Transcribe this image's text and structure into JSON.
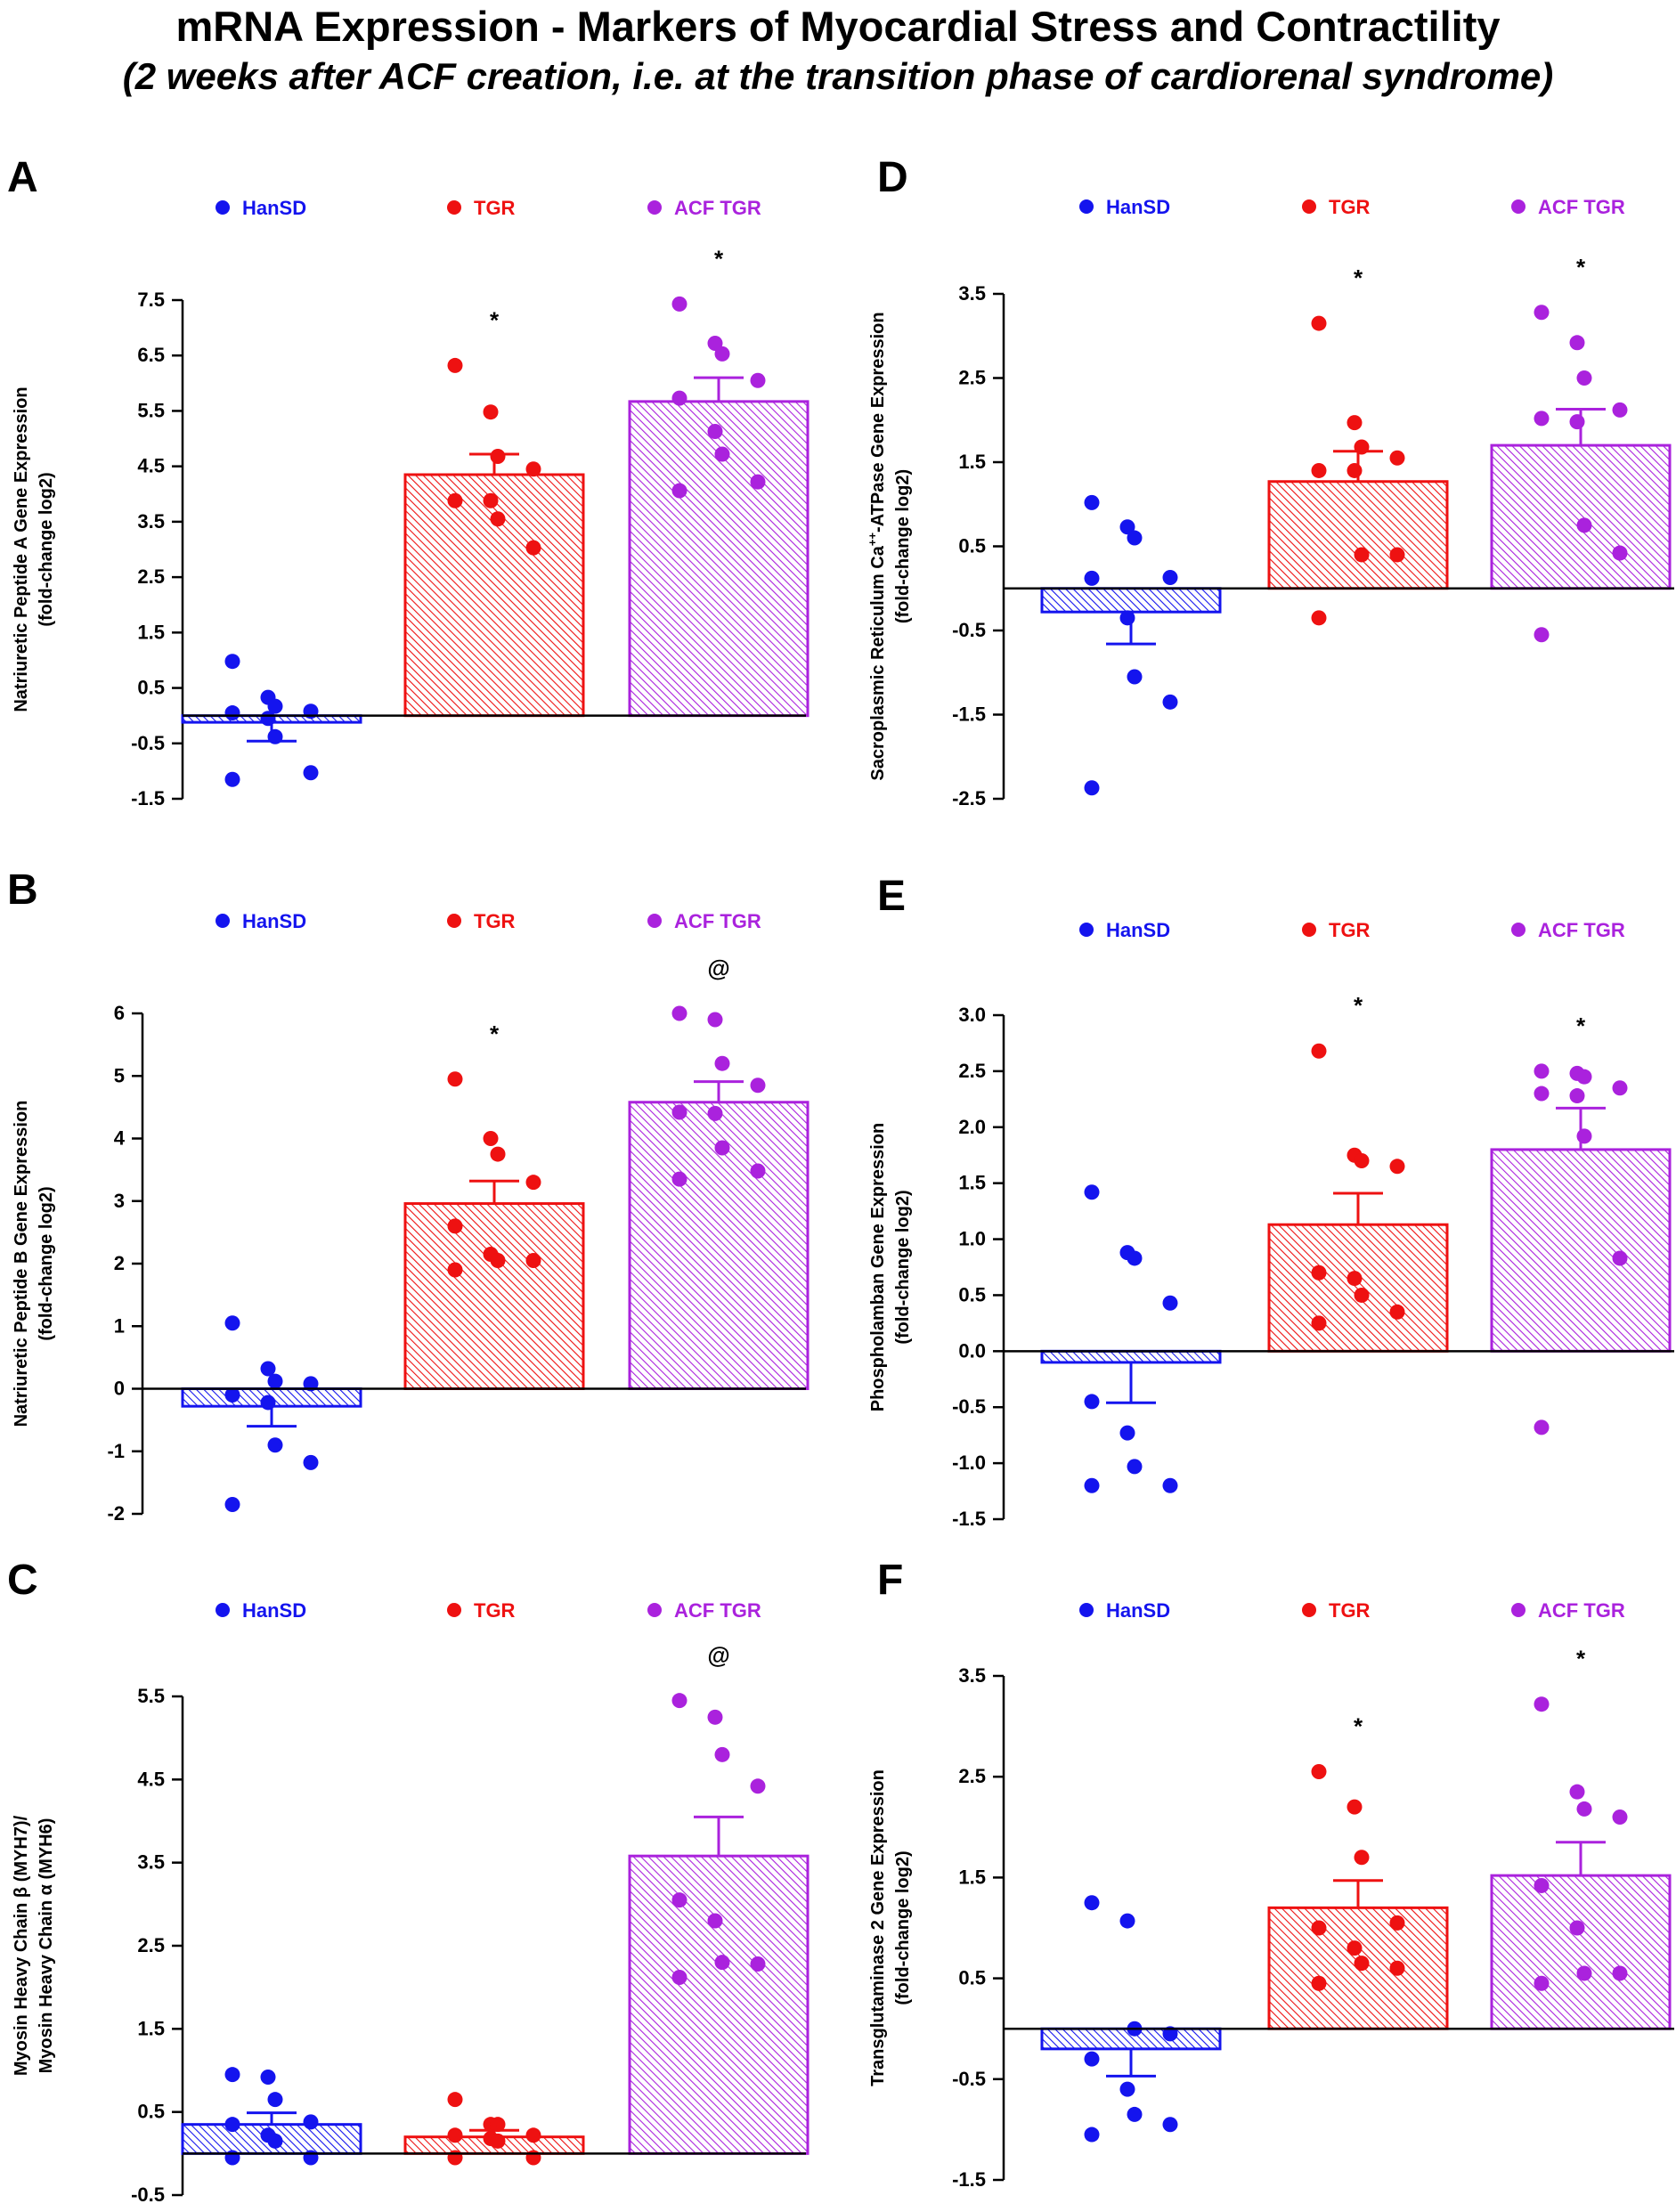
{
  "figure": {
    "title": "mRNA Expression - Markers of Myocardial Stress and Contractility",
    "subtitle": "(2 weeks after ACF creation, i.e. at the transition phase of cardiorenal syndrome)"
  },
  "colors": {
    "HanSD": "#1414ee",
    "TGR": "#ee1111",
    "ACF TGR": "#aa22dd"
  },
  "chart_data": [
    {
      "panel": "A",
      "type": "bar",
      "ylabel": [
        "Natriuretic Peptide A Gene Expression",
        "(fold-change log2)"
      ],
      "legend": [
        "HanSD",
        "TGR",
        "ACF TGR"
      ],
      "categories": [
        "HanSD",
        "TGR",
        "ACF TGR"
      ],
      "ylim": [
        -1.5,
        7.5
      ],
      "ticks": [
        -1.5,
        -0.5,
        0.5,
        1.5,
        2.5,
        3.5,
        4.5,
        5.5,
        6.5,
        7.5
      ],
      "tick_labels": [
        "-1.5",
        "-0.5",
        "0.5",
        "1.5",
        "2.5",
        "3.5",
        "4.5",
        "5.5",
        "6.5",
        "7.5"
      ],
      "means": [
        -0.12,
        4.35,
        5.67
      ],
      "sem": [
        0.34,
        0.37,
        0.43
      ],
      "points": [
        [
          0.98,
          0.33,
          0.17,
          0.08,
          0.05,
          -0.05,
          -0.38,
          -1.03,
          -1.15
        ],
        [
          6.32,
          5.48,
          4.68,
          4.45,
          3.88,
          3.88,
          3.55,
          3.03
        ],
        [
          7.43,
          6.72,
          6.53,
          6.05,
          5.73,
          5.13,
          4.72,
          4.22,
          4.06
        ]
      ],
      "significance": [
        "",
        "*",
        "*"
      ]
    },
    {
      "panel": "B",
      "type": "bar",
      "ylabel": [
        "Natriuretic Peptide B Gene Expression",
        "(fold-change log2)"
      ],
      "legend": [
        "HanSD",
        "TGR",
        "ACF TGR"
      ],
      "categories": [
        "HanSD",
        "TGR",
        "ACF TGR"
      ],
      "ylim": [
        -2,
        6
      ],
      "ticks": [
        -2,
        -1,
        0,
        1,
        2,
        3,
        4,
        5,
        6
      ],
      "tick_labels": [
        "-2",
        "-1",
        "0",
        "1",
        "2",
        "3",
        "4",
        "5",
        "6"
      ],
      "means": [
        -0.28,
        2.96,
        4.58
      ],
      "sem": [
        0.32,
        0.36,
        0.33
      ],
      "points": [
        [
          1.05,
          0.32,
          0.12,
          0.08,
          -0.1,
          -0.22,
          -0.9,
          -1.18,
          -1.85
        ],
        [
          4.95,
          4.0,
          3.75,
          3.3,
          2.6,
          2.15,
          2.05,
          2.05,
          1.9
        ],
        [
          6.0,
          5.9,
          5.2,
          4.85,
          4.42,
          4.4,
          3.85,
          3.48,
          3.35
        ]
      ],
      "significance": [
        "",
        "*",
        "@"
      ]
    },
    {
      "panel": "C",
      "type": "bar",
      "ylabel": [
        "Myosin Heavy Chain β (MYH7)/",
        "Myosin Heavy Chain α (MYH6)"
      ],
      "legend": [
        "HanSD",
        "TGR",
        "ACF TGR"
      ],
      "categories": [
        "HanSD",
        "TGR",
        "ACF TGR"
      ],
      "ylim": [
        -0.5,
        5.5
      ],
      "ticks": [
        -0.5,
        0.5,
        1.5,
        2.5,
        3.5,
        4.5,
        5.5
      ],
      "tick_labels": [
        "-0.5",
        "0.5",
        "1.5",
        "2.5",
        "3.5",
        "4.5",
        "5.5"
      ],
      "means": [
        0.35,
        0.2,
        3.58
      ],
      "sem": [
        0.14,
        0.08,
        0.47
      ],
      "points": [
        [
          0.95,
          0.92,
          0.65,
          0.38,
          0.35,
          0.22,
          0.15,
          -0.05,
          -0.05
        ],
        [
          0.65,
          0.35,
          0.35,
          0.22,
          0.22,
          0.18,
          0.15,
          -0.05,
          -0.05
        ],
        [
          5.45,
          5.25,
          4.8,
          4.42,
          3.05,
          2.8,
          2.3,
          2.28,
          2.12
        ]
      ],
      "significance": [
        "",
        "",
        "@"
      ]
    },
    {
      "panel": "D",
      "type": "bar",
      "ylabel": [
        "Sacroplasmic Reticulum Ca",
        "++",
        "-ATPase Gene Expression",
        "(fold-change log2)"
      ],
      "legend": [
        "HanSD",
        "TGR",
        "ACF TGR"
      ],
      "categories": [
        "HanSD",
        "TGR",
        "ACF TGR"
      ],
      "ylim": [
        -2.5,
        3.5
      ],
      "ticks": [
        -2.5,
        -1.5,
        -0.5,
        0.5,
        1.5,
        2.5,
        3.5
      ],
      "tick_labels": [
        "-2.5",
        "-1.5",
        "-0.5",
        "0.5",
        "1.5",
        "2.5",
        "3.5"
      ],
      "means": [
        -0.28,
        1.27,
        1.7
      ],
      "sem": [
        0.38,
        0.36,
        0.43
      ],
      "points": [
        [
          1.02,
          0.73,
          0.6,
          0.13,
          0.12,
          -0.35,
          -1.05,
          -1.35,
          -2.37
        ],
        [
          3.15,
          1.97,
          1.68,
          1.55,
          1.4,
          1.4,
          0.4,
          0.4,
          -0.35
        ],
        [
          3.28,
          2.92,
          2.5,
          2.12,
          2.02,
          1.98,
          0.75,
          0.42,
          -0.55
        ]
      ],
      "significance": [
        "",
        "*",
        "*"
      ]
    },
    {
      "panel": "E",
      "type": "bar",
      "ylabel": [
        "Phospholamban Gene Expression",
        "(fold-change log2)"
      ],
      "legend": [
        "HanSD",
        "TGR",
        "ACF TGR"
      ],
      "categories": [
        "HanSD",
        "TGR",
        "ACF TGR"
      ],
      "ylim": [
        -1.5,
        3.0
      ],
      "ticks": [
        -1.5,
        -1.0,
        -0.5,
        0.0,
        0.5,
        1.0,
        1.5,
        2.0,
        2.5,
        3.0
      ],
      "tick_labels": [
        "-1.5",
        "-1.0",
        "-0.5",
        "0.0",
        "0.5",
        "1.0",
        "1.5",
        "2.0",
        "2.5",
        "3.0"
      ],
      "means": [
        -0.1,
        1.13,
        1.8
      ],
      "sem": [
        0.36,
        0.28,
        0.37
      ],
      "points": [
        [
          1.42,
          0.88,
          0.83,
          0.43,
          -0.45,
          -0.73,
          -1.03,
          -1.2,
          -1.2
        ],
        [
          2.68,
          1.75,
          1.7,
          1.65,
          0.7,
          0.65,
          0.5,
          0.35,
          0.25
        ],
        [
          2.5,
          2.48,
          2.45,
          2.35,
          2.3,
          2.28,
          1.92,
          0.83,
          -0.68
        ]
      ],
      "significance": [
        "",
        "*",
        "*"
      ]
    },
    {
      "panel": "F",
      "type": "bar",
      "ylabel": [
        "Transglutaminase 2 Gene Expression",
        "(fold-change log2)"
      ],
      "legend": [
        "HanSD",
        "TGR",
        "ACF TGR"
      ],
      "categories": [
        "HanSD",
        "TGR",
        "ACF TGR"
      ],
      "ylim": [
        -1.5,
        3.5
      ],
      "ticks": [
        -1.5,
        -0.5,
        0.5,
        1.5,
        2.5,
        3.5
      ],
      "tick_labels": [
        "-1.5",
        "-0.5",
        "0.5",
        "1.5",
        "2.5",
        "3.5"
      ],
      "means": [
        -0.2,
        1.2,
        1.52
      ],
      "sem": [
        0.27,
        0.27,
        0.33
      ],
      "points": [
        [
          1.25,
          1.07,
          0.0,
          -0.05,
          -0.3,
          -0.6,
          -0.85,
          -0.95,
          -1.05
        ],
        [
          2.55,
          2.2,
          1.7,
          1.05,
          1.0,
          0.8,
          0.65,
          0.6,
          0.45
        ],
        [
          3.22,
          2.35,
          2.18,
          2.1,
          1.42,
          1.0,
          0.55,
          0.55,
          0.45
        ]
      ],
      "significance": [
        "",
        "*",
        "*"
      ]
    }
  ]
}
